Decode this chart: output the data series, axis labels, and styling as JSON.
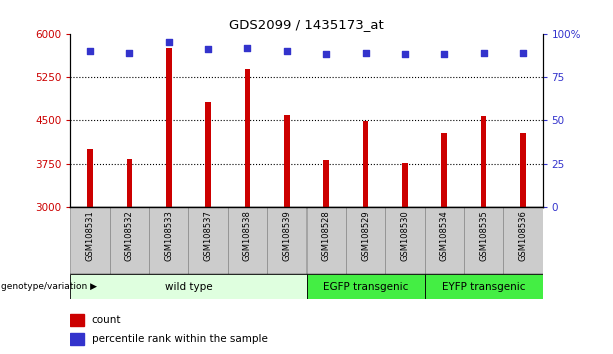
{
  "title": "GDS2099 / 1435173_at",
  "samples": [
    "GSM108531",
    "GSM108532",
    "GSM108533",
    "GSM108537",
    "GSM108538",
    "GSM108539",
    "GSM108528",
    "GSM108529",
    "GSM108530",
    "GSM108534",
    "GSM108535",
    "GSM108536"
  ],
  "counts": [
    4000,
    3830,
    5750,
    4820,
    5380,
    4600,
    3820,
    4490,
    3760,
    4280,
    4580,
    4280
  ],
  "percentiles": [
    90,
    89,
    95,
    91,
    92,
    90,
    88,
    89,
    88,
    88,
    89,
    89
  ],
  "bar_color": "#cc0000",
  "dot_color": "#3333cc",
  "ylim_left": [
    3000,
    6000
  ],
  "ylim_right": [
    0,
    100
  ],
  "yticks_left": [
    3000,
    3750,
    4500,
    5250,
    6000
  ],
  "yticks_right": [
    0,
    25,
    50,
    75,
    100
  ],
  "grid_values": [
    3750,
    4500,
    5250
  ],
  "groups": [
    {
      "label": "wild type",
      "start": 0,
      "end": 6,
      "color": "#dfffdf"
    },
    {
      "label": "EGFP transgenic",
      "start": 6,
      "end": 9,
      "color": "#44ee44"
    },
    {
      "label": "EYFP transgenic",
      "start": 9,
      "end": 12,
      "color": "#44ee44"
    }
  ],
  "tick_label_color": "#cc0000",
  "right_tick_color": "#3333cc",
  "bar_bottom": 3000,
  "bar_width": 0.15,
  "xlabel_group": "genotype/variation",
  "legend_count_color": "#cc0000",
  "legend_dot_color": "#3333cc",
  "tick_area_color": "#cccccc",
  "tick_border_color": "#888888"
}
